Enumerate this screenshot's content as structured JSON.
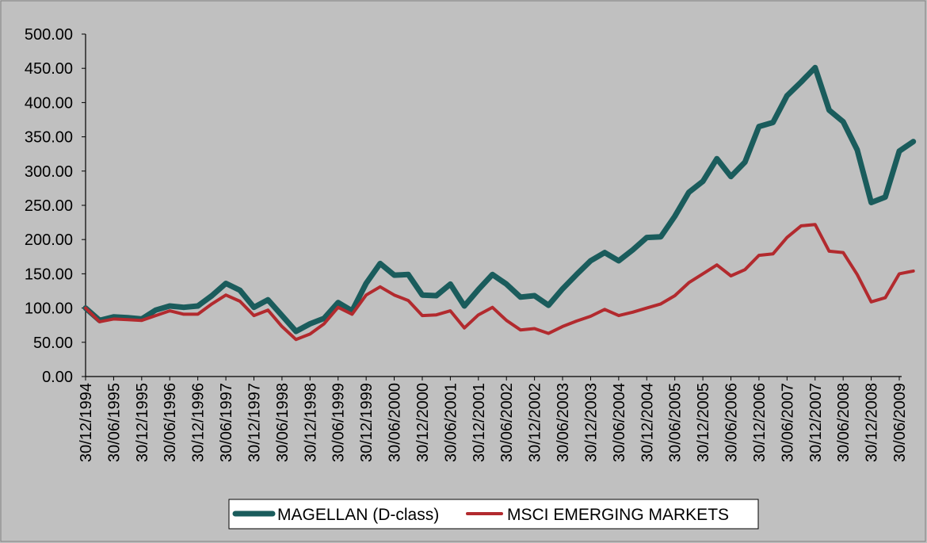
{
  "chart_data": {
    "type": "line",
    "title": "",
    "xlabel": "",
    "ylabel": "",
    "ylim": [
      0,
      500
    ],
    "y_ticks": [
      "0.00",
      "50.00",
      "100.00",
      "150.00",
      "200.00",
      "250.00",
      "300.00",
      "350.00",
      "400.00",
      "450.00",
      "500.00"
    ],
    "x_tick_labels": [
      "30/12/1994",
      "30/06/1995",
      "30/12/1995",
      "30/06/1996",
      "30/12/1996",
      "30/06/1997",
      "30/12/1997",
      "30/06/1998",
      "30/12/1998",
      "30/06/1999",
      "30/12/1999",
      "30/06/2000",
      "30/12/2000",
      "30/06/2001",
      "30/12/2001",
      "30/06/2002",
      "30/12/2002",
      "30/06/2003",
      "30/12/2003",
      "30/06/2004",
      "30/12/2004",
      "30/06/2005",
      "30/12/2005",
      "30/06/2006",
      "30/12/2006",
      "30/06/2007",
      "30/12/2007",
      "30/06/2008",
      "30/12/2008",
      "30/06/2009"
    ],
    "x_range": [
      0,
      58
    ],
    "grid": false,
    "legend_position": "bottom-center",
    "series": [
      {
        "name": "MAGELLAN (D-class)",
        "color": "#1a5c5c",
        "values": [
          100,
          82,
          87,
          86,
          84,
          97,
          103,
          101,
          103,
          118,
          136,
          126,
          101,
          112,
          89,
          66,
          77,
          85,
          108,
          96,
          136,
          165,
          148,
          149,
          119,
          118,
          135,
          103,
          127,
          149,
          135,
          116,
          118,
          104,
          128,
          149,
          169,
          181,
          169,
          185,
          203,
          204,
          234,
          269,
          285,
          318,
          292,
          313,
          365,
          371,
          410,
          430,
          451,
          389,
          372,
          331,
          254,
          262,
          329,
          343
        ]
      },
      {
        "name": "MSCI EMERGING MARKETS",
        "color": "#b22a2e",
        "values": [
          100,
          80,
          84,
          83,
          82,
          89,
          96,
          91,
          91,
          106,
          119,
          110,
          89,
          97,
          73,
          54,
          62,
          77,
          101,
          91,
          119,
          131,
          119,
          111,
          89,
          90,
          96,
          71,
          90,
          101,
          82,
          68,
          70,
          63,
          73,
          81,
          88,
          98,
          89,
          94,
          100,
          106,
          118,
          137,
          150,
          163,
          147,
          156,
          177,
          179,
          203,
          220,
          222,
          183,
          181,
          149,
          109,
          115,
          150,
          154
        ]
      }
    ]
  }
}
